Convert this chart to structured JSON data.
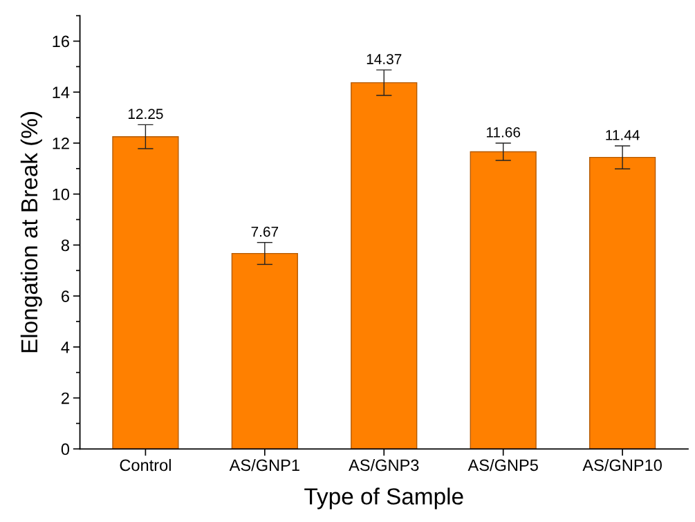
{
  "chart_data": {
    "type": "bar",
    "xlabel": "Type of Sample",
    "ylabel": "Elongation at Break (%)",
    "categories": [
      "Control",
      "AS/GNP1",
      "AS/GNP3",
      "AS/GNP5",
      "AS/GNP10"
    ],
    "values": [
      12.25,
      7.67,
      14.37,
      11.66,
      11.44
    ],
    "errors": [
      0.47,
      0.43,
      0.5,
      0.34,
      0.45
    ],
    "color": "#ff8000",
    "ylim": [
      0,
      17
    ],
    "yticks": [
      0,
      2,
      4,
      6,
      8,
      10,
      12,
      14,
      16
    ],
    "data_labels": true,
    "grid": false,
    "legend": false
  }
}
